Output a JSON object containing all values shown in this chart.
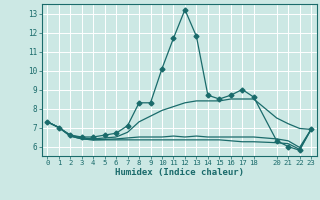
{
  "xlabel": "Humidex (Indice chaleur)",
  "ylabel": "",
  "xlim": [
    -0.5,
    23.5
  ],
  "ylim": [
    5.5,
    13.5
  ],
  "yticks": [
    6,
    7,
    8,
    9,
    10,
    11,
    12,
    13
  ],
  "xticks": [
    0,
    1,
    2,
    3,
    4,
    5,
    6,
    7,
    8,
    9,
    10,
    11,
    12,
    13,
    14,
    15,
    16,
    17,
    18,
    20,
    21,
    22,
    23
  ],
  "bg_color": "#cce8e4",
  "line_color": "#1a6b6b",
  "grid_color": "#ffffff",
  "lines": [
    {
      "x": [
        0,
        1,
        2,
        3,
        4,
        5,
        6,
        7,
        8,
        9,
        10,
        11,
        12,
        13,
        14,
        15,
        16,
        17,
        18,
        20,
        21,
        22,
        23
      ],
      "y": [
        7.3,
        7.0,
        6.6,
        6.5,
        6.5,
        6.6,
        6.7,
        7.1,
        8.3,
        8.3,
        10.1,
        11.7,
        13.2,
        11.8,
        8.7,
        8.5,
        8.7,
        9.0,
        8.6,
        6.3,
        6.0,
        5.8,
        6.9
      ],
      "marker": "D",
      "markersize": 2.5
    },
    {
      "x": [
        0,
        1,
        2,
        3,
        4,
        5,
        6,
        7,
        8,
        9,
        10,
        11,
        12,
        13,
        14,
        15,
        16,
        17,
        18,
        20,
        21,
        22,
        23
      ],
      "y": [
        7.3,
        7.0,
        6.6,
        6.45,
        6.4,
        6.45,
        6.5,
        6.75,
        7.3,
        7.6,
        7.9,
        8.1,
        8.3,
        8.4,
        8.4,
        8.4,
        8.5,
        8.5,
        8.5,
        7.5,
        7.2,
        6.95,
        6.9
      ],
      "marker": null,
      "markersize": 0
    },
    {
      "x": [
        0,
        1,
        2,
        3,
        4,
        5,
        6,
        7,
        8,
        9,
        10,
        11,
        12,
        13,
        14,
        15,
        16,
        17,
        18,
        20,
        21,
        22,
        23
      ],
      "y": [
        7.3,
        7.0,
        6.55,
        6.4,
        6.35,
        6.35,
        6.35,
        6.35,
        6.35,
        6.35,
        6.35,
        6.35,
        6.35,
        6.35,
        6.35,
        6.35,
        6.3,
        6.25,
        6.25,
        6.2,
        6.15,
        5.85,
        6.9
      ],
      "marker": null,
      "markersize": 0
    },
    {
      "x": [
        0,
        1,
        2,
        3,
        4,
        5,
        6,
        7,
        8,
        9,
        10,
        11,
        12,
        13,
        14,
        15,
        16,
        17,
        18,
        20,
        21,
        22,
        23
      ],
      "y": [
        7.3,
        7.0,
        6.55,
        6.4,
        6.35,
        6.37,
        6.4,
        6.45,
        6.5,
        6.5,
        6.5,
        6.55,
        6.5,
        6.55,
        6.5,
        6.5,
        6.5,
        6.5,
        6.5,
        6.4,
        6.3,
        5.95,
        6.9
      ],
      "marker": null,
      "markersize": 0
    }
  ]
}
